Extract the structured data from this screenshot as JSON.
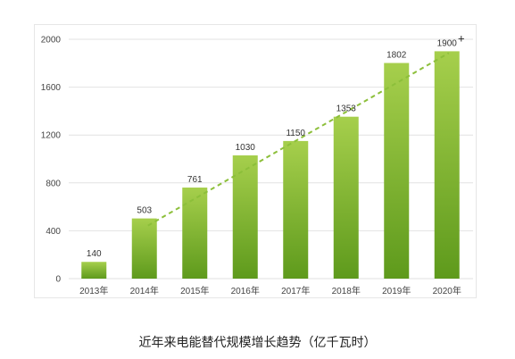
{
  "chart_data": {
    "type": "bar",
    "categories": [
      "2013年",
      "2014年",
      "2015年",
      "2016年",
      "2017年",
      "2018年",
      "2019年",
      "2020年"
    ],
    "values": [
      140,
      503,
      761,
      1030,
      1150,
      1353,
      1802,
      1900
    ],
    "data_labels": [
      "140",
      "503",
      "761",
      "1030",
      "1150",
      "1353",
      "1802",
      "1900"
    ],
    "yticks": [
      0,
      400,
      800,
      1200,
      1600,
      2000
    ],
    "ylim": [
      0,
      2000
    ],
    "grid": true,
    "trendline": {
      "style": "dashed",
      "from_index": 1,
      "to_index": 7
    },
    "marker_glyph": "+",
    "colors": {
      "bar_top": "#a6cf4c",
      "bar_bottom": "#5e9a1c",
      "trend": "#8cbf3a",
      "grid": "#e2e2e2"
    }
  },
  "caption": "近年来电能替代规模增长趋势（亿千瓦时）"
}
